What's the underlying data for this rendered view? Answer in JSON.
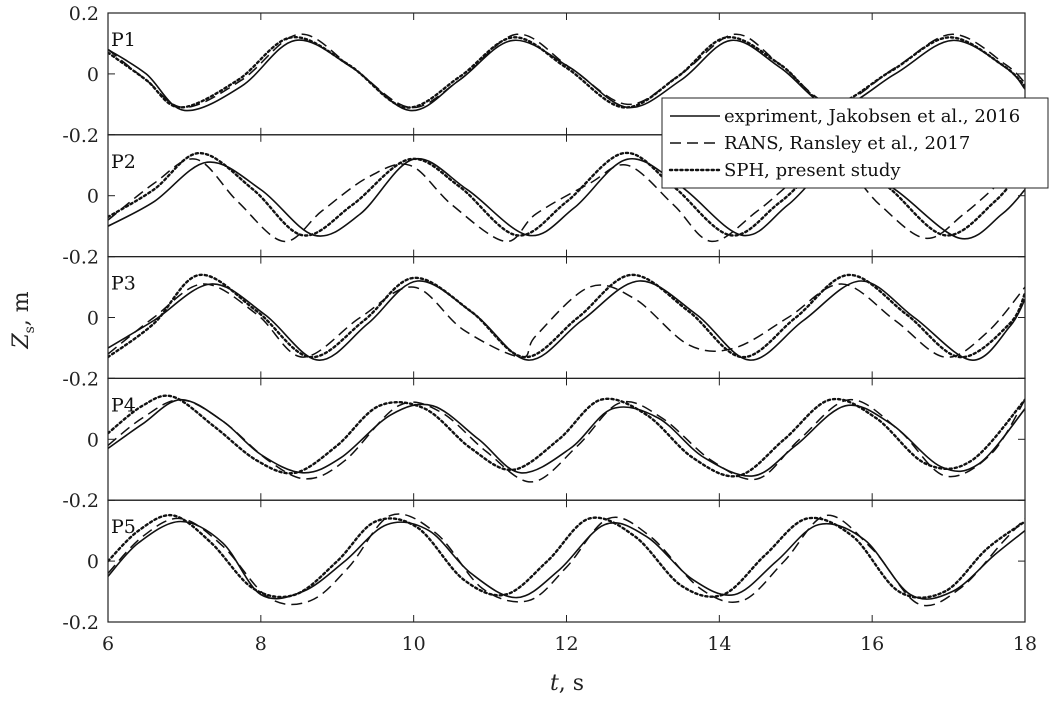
{
  "chart_data": {
    "type": "line",
    "xlabel_var": "t",
    "xlabel_unit": ", s",
    "ylabel_var": "Z",
    "ylabel_sub": "s",
    "ylabel_unit": ", m",
    "xlim": [
      6,
      18
    ],
    "xticks": [
      6,
      8,
      10,
      12,
      14,
      16,
      18
    ],
    "xtick_labels": [
      "6",
      "8",
      "10",
      "12",
      "14",
      "16",
      "18"
    ],
    "ylim": [
      -0.2,
      0.2
    ],
    "yticks": [
      0.2,
      0,
      -0.2
    ],
    "ytick_labels_top": [
      "0.2",
      "0",
      "-0.2"
    ],
    "ytick_labels_other": [
      "0",
      "-0.2"
    ],
    "legend": {
      "position": "upper-right (overlapping P1/P2)",
      "entries": [
        {
          "label": "expriment, Jakobsen et al., 2016",
          "style": "solid"
        },
        {
          "label": "RANS, Ransley et al., 2017",
          "style": "dashed"
        },
        {
          "label": "SPH, present study",
          "style": "dotted"
        }
      ]
    },
    "panels": [
      {
        "label": "P1",
        "series": [
          {
            "style": "solid",
            "x": [
              6,
              6.5,
              7.0,
              7.75,
              8.45,
              9.2,
              9.95,
              10.6,
              11.3,
              12.05,
              12.8,
              13.5,
              14.15,
              14.8,
              15.5,
              16.3,
              17.05,
              17.75,
              18
            ],
            "y": [
              0.08,
              0.0,
              -0.12,
              -0.04,
              0.11,
              0.02,
              -0.12,
              -0.02,
              0.11,
              0.02,
              -0.11,
              -0.02,
              0.11,
              0.02,
              -0.11,
              0.0,
              0.11,
              0.02,
              -0.05
            ]
          },
          {
            "style": "dashed",
            "x": [
              6,
              6.5,
              7.0,
              7.75,
              8.5,
              9.2,
              9.95,
              10.6,
              11.35,
              12.05,
              12.8,
              13.5,
              14.2,
              14.8,
              15.5,
              16.3,
              17.05,
              17.75,
              18
            ],
            "y": [
              0.08,
              -0.02,
              -0.11,
              -0.02,
              0.13,
              0.02,
              -0.11,
              -0.02,
              0.13,
              0.02,
              -0.1,
              0.0,
              0.13,
              0.03,
              -0.1,
              0.02,
              0.13,
              0.03,
              -0.03
            ]
          },
          {
            "style": "dotted",
            "x": [
              6,
              6.5,
              6.95,
              7.7,
              8.4,
              9.15,
              9.9,
              10.6,
              11.3,
              12.0,
              12.75,
              13.45,
              14.1,
              14.8,
              15.45,
              16.25,
              17.0,
              17.7,
              18
            ],
            "y": [
              0.07,
              -0.02,
              -0.11,
              -0.02,
              0.12,
              0.03,
              -0.11,
              -0.01,
              0.12,
              0.02,
              -0.11,
              -0.01,
              0.12,
              0.03,
              -0.1,
              0.01,
              0.12,
              0.03,
              -0.04
            ]
          }
        ]
      },
      {
        "label": "P2",
        "series": [
          {
            "style": "solid",
            "x": [
              6,
              6.6,
              7.3,
              8.0,
              8.7,
              9.3,
              10.0,
              10.7,
              11.5,
              12.1,
              12.8,
              13.5,
              14.3,
              14.9,
              15.6,
              16.3,
              17.15,
              17.7,
              18
            ],
            "y": [
              -0.1,
              -0.02,
              0.11,
              0.02,
              -0.13,
              -0.06,
              0.12,
              0.02,
              -0.13,
              -0.04,
              0.12,
              0.03,
              -0.13,
              -0.03,
              0.12,
              0.02,
              -0.14,
              -0.06,
              0.02
            ]
          },
          {
            "style": "dashed",
            "x": [
              6,
              6.6,
              7.15,
              7.7,
              8.3,
              8.8,
              9.4,
              9.95,
              10.5,
              11.2,
              11.6,
              12.3,
              12.8,
              13.4,
              13.9,
              14.5,
              15.1,
              15.6,
              16.1,
              16.7,
              17.2,
              17.7,
              18
            ],
            "y": [
              -0.08,
              0.04,
              0.12,
              -0.02,
              -0.15,
              -0.05,
              0.06,
              0.1,
              -0.03,
              -0.15,
              -0.06,
              0.04,
              0.1,
              -0.03,
              -0.15,
              -0.05,
              0.07,
              0.1,
              -0.03,
              -0.14,
              -0.06,
              0.05,
              0.12
            ]
          },
          {
            "style": "dotted",
            "x": [
              6,
              6.6,
              7.2,
              7.9,
              8.55,
              9.2,
              9.95,
              10.6,
              11.35,
              12.0,
              12.75,
              13.4,
              14.15,
              14.8,
              15.55,
              16.2,
              16.95,
              17.6,
              18
            ],
            "y": [
              -0.07,
              0.02,
              0.14,
              0.02,
              -0.13,
              -0.03,
              0.12,
              0.03,
              -0.13,
              -0.02,
              0.14,
              0.03,
              -0.13,
              -0.02,
              0.13,
              0.03,
              -0.13,
              -0.02,
              0.1
            ]
          }
        ]
      },
      {
        "label": "P3",
        "series": [
          {
            "style": "solid",
            "x": [
              6,
              6.6,
              7.35,
              8.05,
              8.75,
              9.4,
              10.05,
              10.8,
              11.5,
              12.2,
              12.95,
              13.7,
              14.4,
              15.1,
              15.85,
              16.55,
              17.3,
              17.8,
              18
            ],
            "y": [
              -0.1,
              -0.01,
              0.11,
              0.01,
              -0.14,
              -0.02,
              0.12,
              0.01,
              -0.14,
              -0.01,
              0.12,
              0.01,
              -0.14,
              -0.01,
              0.12,
              0.0,
              -0.14,
              -0.03,
              0.06
            ]
          },
          {
            "style": "dashed",
            "x": [
              6,
              6.6,
              7.25,
              7.95,
              8.55,
              9.3,
              10.0,
              10.65,
              11.4,
              11.6,
              12.3,
              12.9,
              13.6,
              14.2,
              14.9,
              15.6,
              16.3,
              16.95,
              17.5,
              18
            ],
            "y": [
              -0.12,
              0.0,
              0.11,
              0.01,
              -0.13,
              0.0,
              0.1,
              -0.04,
              -0.13,
              -0.06,
              0.1,
              0.06,
              -0.09,
              -0.1,
              0.0,
              0.11,
              -0.01,
              -0.13,
              -0.05,
              0.1
            ]
          },
          {
            "style": "dotted",
            "x": [
              6,
              6.6,
              7.2,
              7.95,
              8.65,
              9.35,
              10.0,
              10.75,
              11.45,
              12.15,
              12.85,
              13.6,
              14.3,
              15.0,
              15.7,
              16.45,
              17.15,
              17.8,
              18
            ],
            "y": [
              -0.13,
              -0.02,
              0.14,
              0.02,
              -0.13,
              -0.01,
              0.13,
              0.02,
              -0.13,
              0.0,
              0.14,
              0.02,
              -0.13,
              0.0,
              0.14,
              0.01,
              -0.13,
              -0.02,
              0.08
            ]
          }
        ]
      },
      {
        "label": "P4",
        "series": [
          {
            "style": "solid",
            "x": [
              6,
              6.45,
              6.95,
              7.5,
              8.0,
              8.55,
              9.05,
              9.7,
              10.25,
              10.85,
              11.4,
              12.05,
              12.6,
              13.2,
              13.8,
              14.45,
              15.0,
              15.65,
              16.25,
              16.9,
              17.4,
              18
            ],
            "y": [
              -0.03,
              0.05,
              0.13,
              0.06,
              -0.05,
              -0.11,
              -0.06,
              0.08,
              0.11,
              0.0,
              -0.11,
              -0.03,
              0.1,
              0.07,
              -0.06,
              -0.12,
              -0.02,
              0.11,
              0.05,
              -0.09,
              -0.08,
              0.1
            ]
          },
          {
            "style": "dashed",
            "x": [
              6,
              6.45,
              6.95,
              7.5,
              8.1,
              8.6,
              9.1,
              9.8,
              10.35,
              10.95,
              11.55,
              12.15,
              12.7,
              13.25,
              13.9,
              14.5,
              15.05,
              15.7,
              16.35,
              16.95,
              17.55,
              18
            ],
            "y": [
              -0.02,
              0.07,
              0.13,
              0.06,
              -0.07,
              -0.13,
              -0.07,
              0.11,
              0.09,
              -0.04,
              -0.14,
              -0.02,
              0.12,
              0.07,
              -0.07,
              -0.13,
              0.0,
              0.13,
              0.03,
              -0.12,
              -0.05,
              0.13
            ]
          },
          {
            "style": "dotted",
            "x": [
              6,
              6.45,
              6.85,
              7.4,
              7.95,
              8.45,
              9.0,
              9.55,
              10.15,
              10.75,
              11.3,
              11.9,
              12.45,
              13.05,
              13.65,
              14.25,
              14.85,
              15.45,
              16.05,
              16.7,
              17.3,
              18
            ],
            "y": [
              0.02,
              0.11,
              0.14,
              0.04,
              -0.07,
              -0.11,
              -0.02,
              0.11,
              0.1,
              -0.03,
              -0.1,
              0.0,
              0.13,
              0.08,
              -0.06,
              -0.12,
              0.0,
              0.13,
              0.07,
              -0.08,
              -0.07,
              0.13
            ]
          }
        ]
      },
      {
        "label": "P5",
        "series": [
          {
            "style": "solid",
            "x": [
              6,
              6.4,
              6.95,
              7.5,
              8.0,
              8.55,
              9.1,
              9.65,
              10.2,
              10.75,
              11.35,
              11.9,
              12.5,
              13.05,
              13.65,
              14.2,
              14.75,
              15.3,
              15.9,
              16.5,
              17.05,
              17.6,
              18
            ],
            "y": [
              -0.05,
              0.06,
              0.13,
              0.06,
              -0.11,
              -0.1,
              0.0,
              0.12,
              0.1,
              -0.04,
              -0.12,
              -0.03,
              0.12,
              0.08,
              -0.06,
              -0.11,
              0.0,
              0.12,
              0.07,
              -0.11,
              -0.1,
              0.02,
              0.1
            ]
          },
          {
            "style": "dashed",
            "x": [
              6,
              6.45,
              6.95,
              7.5,
              8.1,
              8.65,
              9.15,
              9.7,
              10.3,
              10.9,
              11.5,
              12.0,
              12.55,
              13.1,
              13.75,
              14.3,
              14.85,
              15.4,
              16.0,
              16.6,
              17.15,
              17.7,
              18
            ],
            "y": [
              -0.04,
              0.08,
              0.14,
              0.05,
              -0.12,
              -0.13,
              -0.02,
              0.15,
              0.09,
              -0.09,
              -0.13,
              -0.02,
              0.14,
              0.08,
              -0.09,
              -0.13,
              0.0,
              0.15,
              0.04,
              -0.14,
              -0.09,
              0.06,
              0.14
            ]
          },
          {
            "style": "dotted",
            "x": [
              6,
              6.4,
              6.85,
              7.35,
              7.9,
              8.45,
              9.0,
              9.5,
              10.05,
              10.65,
              11.2,
              11.75,
              12.3,
              12.9,
              13.5,
              14.05,
              14.6,
              15.15,
              15.75,
              16.35,
              16.95,
              17.5,
              18
            ],
            "y": [
              0.0,
              0.1,
              0.15,
              0.06,
              -0.09,
              -0.11,
              0.0,
              0.13,
              0.11,
              -0.06,
              -0.11,
              0.0,
              0.14,
              0.08,
              -0.08,
              -0.11,
              0.02,
              0.14,
              0.08,
              -0.1,
              -0.1,
              0.04,
              0.13
            ]
          }
        ]
      }
    ]
  }
}
